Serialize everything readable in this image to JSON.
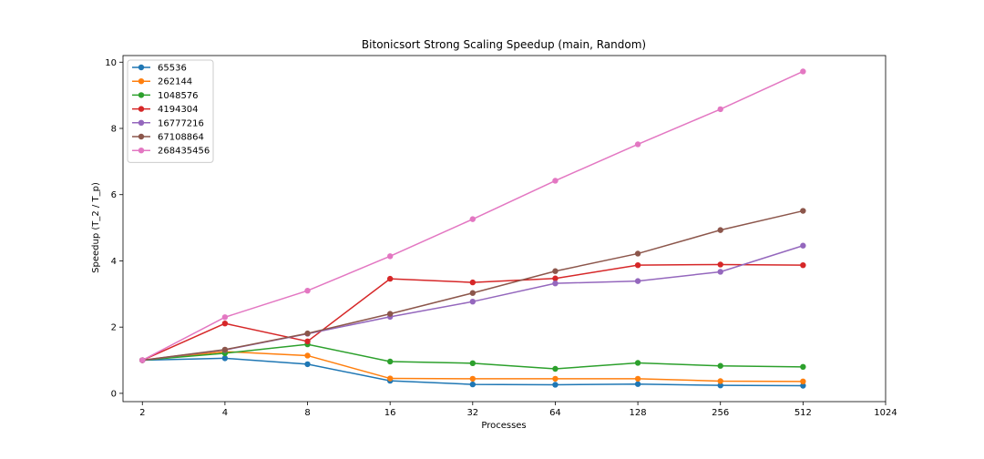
{
  "chart_data": {
    "type": "line",
    "title": "Bitonicsort Strong Scaling Speedup (main, Random)",
    "xlabel": "Processes",
    "ylabel": "Speedup (T_2 / T_p)",
    "x_scale": "log2",
    "x": [
      2,
      4,
      8,
      16,
      32,
      64,
      128,
      256,
      512
    ],
    "x_ticks": [
      "2",
      "4",
      "8",
      "16",
      "32",
      "64",
      "128",
      "256",
      "512",
      "1024"
    ],
    "xlim": [
      1.7,
      1024
    ],
    "y_ticks": [
      "0",
      "2",
      "4",
      "6",
      "8",
      "10"
    ],
    "ylim": [
      -0.25,
      10.2
    ],
    "grid": false,
    "legend_position": "upper-left",
    "series": [
      {
        "name": "65536",
        "color": "#1f77b4",
        "values": [
          1.0,
          1.06,
          0.88,
          0.38,
          0.27,
          0.26,
          0.28,
          0.24,
          0.23
        ]
      },
      {
        "name": "262144",
        "color": "#ff7f0e",
        "values": [
          1.0,
          1.26,
          1.14,
          0.45,
          0.44,
          0.44,
          0.44,
          0.37,
          0.36
        ]
      },
      {
        "name": "1048576",
        "color": "#2ca02c",
        "values": [
          1.0,
          1.21,
          1.48,
          0.96,
          0.91,
          0.74,
          0.92,
          0.83,
          0.8
        ]
      },
      {
        "name": "4194304",
        "color": "#d62728",
        "values": [
          1.0,
          2.11,
          1.57,
          3.46,
          3.35,
          3.47,
          3.87,
          3.89,
          3.87
        ]
      },
      {
        "name": "16777216",
        "color": "#9467bd",
        "values": [
          1.0,
          1.31,
          1.8,
          2.31,
          2.77,
          3.32,
          3.39,
          3.67,
          4.46
        ]
      },
      {
        "name": "67108864",
        "color": "#8c564b",
        "values": [
          1.0,
          1.32,
          1.81,
          2.4,
          3.03,
          3.69,
          4.22,
          4.93,
          5.51
        ]
      },
      {
        "name": "268435456",
        "color": "#e377c2",
        "values": [
          1.0,
          2.3,
          3.1,
          4.14,
          5.26,
          6.42,
          7.52,
          8.58,
          9.72
        ]
      }
    ]
  }
}
